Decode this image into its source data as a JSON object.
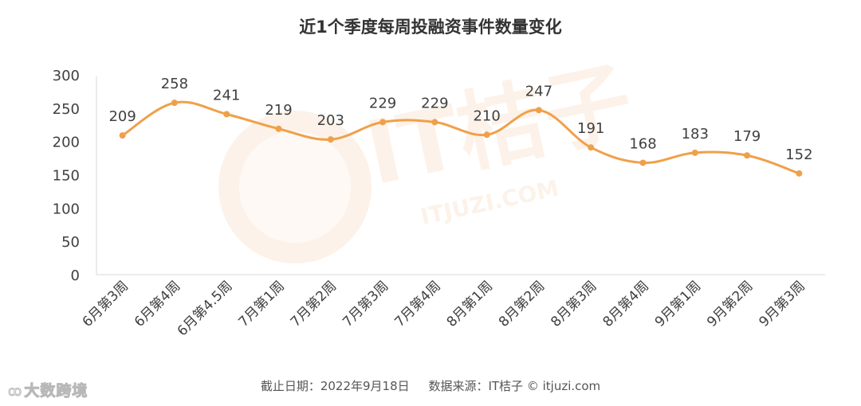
{
  "chart_data": {
    "type": "line",
    "title": "近1个季度每周投融资事件数量变化",
    "categories": [
      "6月第3周",
      "6月第4周",
      "6月第4.5周",
      "7月第1周",
      "7月第2周",
      "7月第3周",
      "7月第4周",
      "8月第1周",
      "8月第2周",
      "8月第3周",
      "8月第4周",
      "9月第1周",
      "9月第2周",
      "9月第3周"
    ],
    "values": [
      209,
      258,
      241,
      219,
      203,
      229,
      229,
      210,
      247,
      191,
      168,
      183,
      179,
      152
    ],
    "ylim": [
      0,
      300
    ],
    "yticks": [
      "0",
      "50",
      "100",
      "150",
      "200",
      "250",
      "300"
    ],
    "xlabel": "",
    "ylabel": "",
    "grid": false,
    "legend": "none",
    "smooth": true,
    "data_labels": true,
    "series_color": "#F0A04A"
  },
  "footer": {
    "source": "截止日期：2022年9月18日     数据来源：IT桔子 © itjuzi.com"
  },
  "watermark": {
    "text": "IT桔子",
    "url": "ITJUZI.COM",
    "color": "#F6C9A0"
  },
  "brand": {
    "icon": "weibo-icon",
    "text": "大数跨境"
  }
}
